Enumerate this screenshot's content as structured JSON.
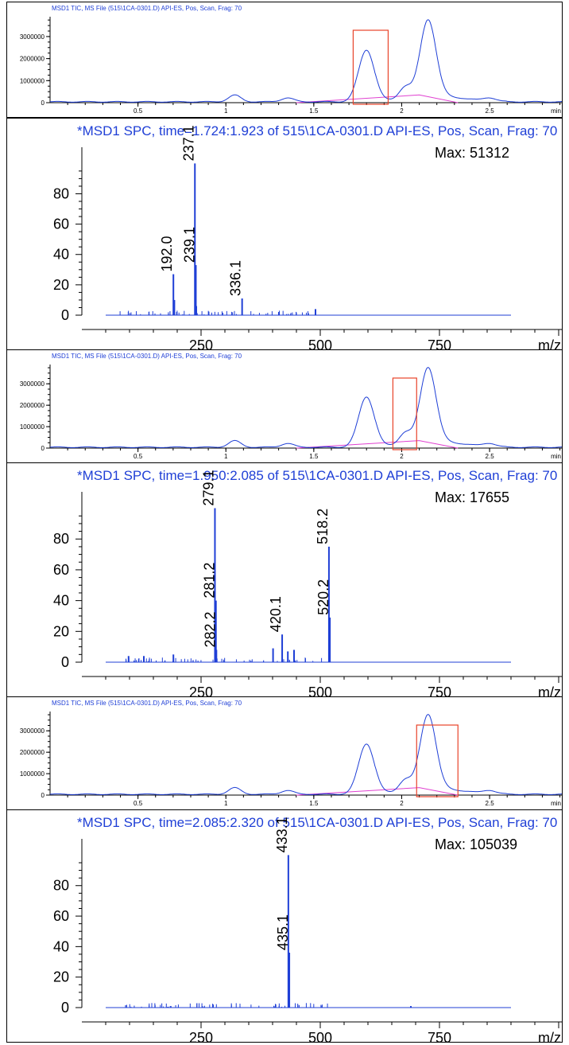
{
  "colors": {
    "trace": "#1f3fd6",
    "baseline": "#e040d0",
    "highlight": "#e8432a",
    "axis": "#000000"
  },
  "tic_common": {
    "title": "MSD1 TIC, MS File (515\\1CA-0301.D)    API-ES, Pos, Scan, Frag: 70",
    "x_unit": "min",
    "x_ticks": [
      "0.5",
      "1",
      "1.5",
      "2",
      "2.5"
    ],
    "y_ticks": [
      "0",
      "1000000",
      "2000000",
      "3000000"
    ]
  },
  "spc_common": {
    "x_unit": "m/z",
    "x_ticks": [
      "250",
      "500",
      "750"
    ],
    "y_ticks": [
      "0",
      "20",
      "40",
      "60",
      "80"
    ]
  },
  "chart_data": [
    {
      "type": "line",
      "title": "MSD1 TIC, MS File (515\\1CA-0301.D)    API-ES, Pos, Scan, Frag: 70",
      "xlabel": "min",
      "xlim": [
        0.0,
        2.92
      ],
      "ylim": [
        0,
        3900000
      ],
      "highlight_range": [
        1.724,
        1.923
      ],
      "peaks": [
        {
          "rt": 1.05,
          "height": 300000
        },
        {
          "rt": 1.35,
          "height": 180000
        },
        {
          "rt": 1.8,
          "height": 2350000
        },
        {
          "rt": 2.02,
          "height": 550000
        },
        {
          "rt": 2.15,
          "height": 3500000
        },
        {
          "rt": 2.5,
          "height": 150000
        }
      ]
    },
    {
      "type": "bar",
      "title": "*MSD1 SPC, time=1.724:1.923 of 515\\1CA-0301.D    API-ES, Pos, Scan, Frag: 70",
      "xlabel": "m/z",
      "xlim": [
        0,
        1000
      ],
      "ylim": [
        0,
        100
      ],
      "max_label": "Max: 51312",
      "peaks": [
        {
          "mz": 192.0,
          "intensity": 27,
          "label": "192.0"
        },
        {
          "mz": 194.0,
          "intensity": 10
        },
        {
          "mz": 237.1,
          "intensity": 100,
          "label": "237.1"
        },
        {
          "mz": 239.1,
          "intensity": 33,
          "label": "239.1"
        },
        {
          "mz": 240.0,
          "intensity": 6
        },
        {
          "mz": 336.1,
          "intensity": 11,
          "label": "336.1"
        },
        {
          "mz": 490.0,
          "intensity": 4
        }
      ]
    },
    {
      "type": "line",
      "title": "MSD1 TIC, MS File (515\\1CA-0301.D)    API-ES, Pos, Scan, Frag: 70",
      "xlabel": "min",
      "xlim": [
        0.0,
        2.92
      ],
      "ylim": [
        0,
        3900000
      ],
      "highlight_range": [
        1.95,
        2.085
      ],
      "peaks": [
        {
          "rt": 1.05,
          "height": 300000
        },
        {
          "rt": 1.35,
          "height": 180000
        },
        {
          "rt": 1.8,
          "height": 2350000
        },
        {
          "rt": 2.02,
          "height": 550000
        },
        {
          "rt": 2.15,
          "height": 3500000
        },
        {
          "rt": 2.5,
          "height": 150000
        }
      ]
    },
    {
      "type": "bar",
      "title": "*MSD1 SPC, time=1.950:2.085 of 515\\1CA-0301.D    API-ES, Pos, Scan, Frag: 70",
      "xlabel": "m/z",
      "xlim": [
        0,
        1000
      ],
      "ylim": [
        0,
        100
      ],
      "max_label": "Max: 17655",
      "peaks": [
        {
          "mz": 279.1,
          "intensity": 100,
          "label": "279.1"
        },
        {
          "mz": 281.2,
          "intensity": 40,
          "label": "281.2"
        },
        {
          "mz": 282.2,
          "intensity": 8,
          "label": "282.2"
        },
        {
          "mz": 420.1,
          "intensity": 18,
          "label": "420.1"
        },
        {
          "mz": 518.2,
          "intensity": 75,
          "label": "518.2"
        },
        {
          "mz": 520.2,
          "intensity": 29,
          "label": "520.2"
        },
        {
          "mz": 401.0,
          "intensity": 9
        },
        {
          "mz": 432.0,
          "intensity": 7
        },
        {
          "mz": 445.0,
          "intensity": 8
        },
        {
          "mz": 192.0,
          "intensity": 5
        },
        {
          "mz": 98.0,
          "intensity": 4
        },
        {
          "mz": 130.0,
          "intensity": 4
        }
      ]
    },
    {
      "type": "line",
      "title": "MSD1 TIC, MS File (515\\1CA-0301.D)    API-ES, Pos, Scan, Frag: 70",
      "xlabel": "min",
      "xlim": [
        0.0,
        2.92
      ],
      "ylim": [
        0,
        3900000
      ],
      "highlight_range": [
        2.085,
        2.32
      ],
      "peaks": [
        {
          "rt": 1.05,
          "height": 300000
        },
        {
          "rt": 1.35,
          "height": 180000
        },
        {
          "rt": 1.8,
          "height": 2350000
        },
        {
          "rt": 2.02,
          "height": 550000
        },
        {
          "rt": 2.15,
          "height": 3500000
        },
        {
          "rt": 2.5,
          "height": 150000
        }
      ]
    },
    {
      "type": "bar",
      "title": "*MSD1 SPC, time=2.085:2.320 of 515\\1CA-0301.D    API-ES, Pos, Scan, Frag: 70",
      "xlabel": "m/z",
      "xlim": [
        0,
        1000
      ],
      "ylim": [
        0,
        100
      ],
      "max_label": "Max: 105039",
      "peaks": [
        {
          "mz": 433.1,
          "intensity": 100,
          "label": "433.1"
        },
        {
          "mz": 435.1,
          "intensity": 36,
          "label": "435.1"
        },
        {
          "mz": 434.0,
          "intensity": 15
        },
        {
          "mz": 690.0,
          "intensity": 1
        }
      ]
    }
  ]
}
